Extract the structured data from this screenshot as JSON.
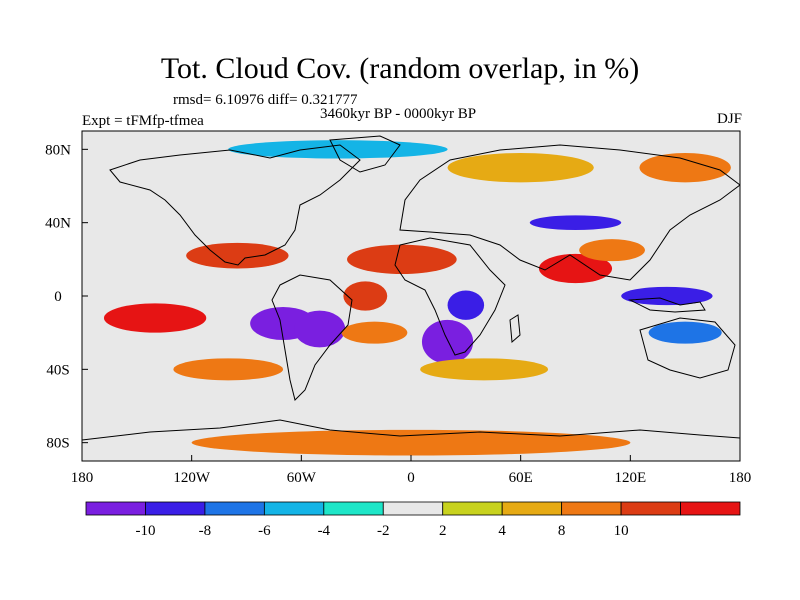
{
  "title": "Tot. Cloud Cov. (random overlap, in %)",
  "stats_line": "rmsd= 6.10976  diff= 0.321777",
  "period_label": "3460kyr BP - 0000kyr BP",
  "experiment_label": "Expt = tFMfp-tfmea",
  "season_label": "DJF",
  "map": {
    "projection": "cylindrical equidistant",
    "lon_ticks": [
      "180",
      "120W",
      "60W",
      "0",
      "60E",
      "120E",
      "180"
    ],
    "lat_ticks": [
      "80N",
      "40N",
      "0",
      "40S",
      "80S"
    ]
  },
  "colorbar": {
    "colors": [
      "#7a1fe0",
      "#3a1ee6",
      "#1e74e6",
      "#14b4e6",
      "#1ee6c8",
      "#e8e8e8",
      "#c8d21e",
      "#e6aa14",
      "#ee7814",
      "#dc3c14",
      "#e61414"
    ],
    "labels": [
      "-10",
      "-8",
      "-6",
      "-4",
      "-2",
      "2",
      "4",
      "8",
      "10"
    ]
  },
  "anomaly_features": [
    {
      "lon": -140,
      "lat": -12,
      "rx": 28,
      "ry": 8,
      "level": 5
    },
    {
      "lon": -95,
      "lat": 22,
      "rx": 28,
      "ry": 7,
      "level": 4
    },
    {
      "lon": -70,
      "lat": -15,
      "rx": 18,
      "ry": 9,
      "level": -5
    },
    {
      "lon": -50,
      "lat": -18,
      "rx": 14,
      "ry": 10,
      "level": -5
    },
    {
      "lon": -25,
      "lat": 0,
      "rx": 12,
      "ry": 8,
      "level": 4
    },
    {
      "lon": -5,
      "lat": 20,
      "rx": 30,
      "ry": 8,
      "level": 4
    },
    {
      "lon": -20,
      "lat": -20,
      "rx": 18,
      "ry": 6,
      "level": 3
    },
    {
      "lon": 20,
      "lat": -25,
      "rx": 14,
      "ry": 12,
      "level": -5
    },
    {
      "lon": 30,
      "lat": -5,
      "rx": 10,
      "ry": 8,
      "level": -4
    },
    {
      "lon": 90,
      "lat": 15,
      "rx": 20,
      "ry": 8,
      "level": 5
    },
    {
      "lon": 110,
      "lat": 25,
      "rx": 18,
      "ry": 6,
      "level": 3
    },
    {
      "lon": 90,
      "lat": 40,
      "rx": 25,
      "ry": 4,
      "level": -4
    },
    {
      "lon": 140,
      "lat": 0,
      "rx": 25,
      "ry": 5,
      "level": -4
    },
    {
      "lon": 150,
      "lat": -20,
      "rx": 20,
      "ry": 6,
      "level": -3
    },
    {
      "lon": 0,
      "lat": -80,
      "rx": 120,
      "ry": 7,
      "level": 3
    },
    {
      "lon": -100,
      "lat": -40,
      "rx": 30,
      "ry": 6,
      "level": 3
    },
    {
      "lon": 40,
      "lat": -40,
      "rx": 35,
      "ry": 6,
      "level": 2
    },
    {
      "lon": 60,
      "lat": 70,
      "rx": 40,
      "ry": 8,
      "level": 2
    },
    {
      "lon": -40,
      "lat": 80,
      "rx": 60,
      "ry": 5,
      "level": -2
    },
    {
      "lon": 150,
      "lat": 70,
      "rx": 25,
      "ry": 8,
      "level": 3
    }
  ]
}
